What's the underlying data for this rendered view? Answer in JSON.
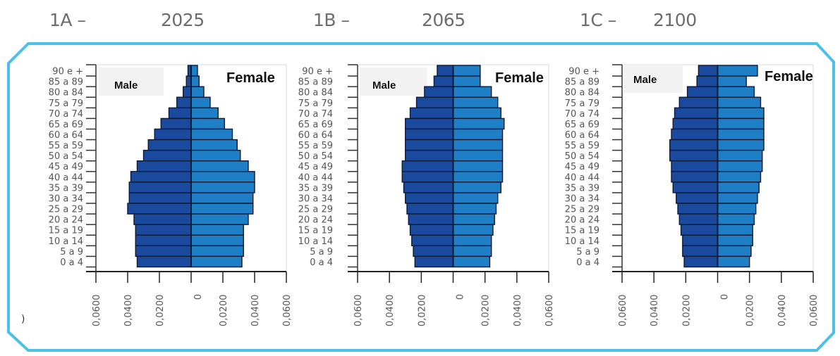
{
  "panels": [
    {
      "code": "1A –",
      "year": "2025"
    },
    {
      "code": "1B –",
      "year": "2065"
    },
    {
      "code": "1C –",
      "year": "2100"
    }
  ],
  "stray_mark": ")",
  "colors": {
    "male": "#1a4a9e",
    "female": "#1f7fc6",
    "bar_edge": "#0e1a33",
    "frame": "#4cc0e8",
    "legend_box": "#f3f3f3"
  },
  "chart_data": [
    {
      "type": "bar",
      "subtype": "population-pyramid",
      "title": "1A – 2025",
      "legend": [
        "Male",
        "Female"
      ],
      "legend_placement": "top",
      "age_groups": [
        "90 e +",
        "85 a 89",
        "80 a 84",
        "75 a 79",
        "70 a 74",
        "65 a 69",
        "60 a 64",
        "55 a 59",
        "50 a 54",
        "45 a 49",
        "40 a 44",
        "35 a 39",
        "30 a 34",
        "25 a 29",
        "20 a 24",
        "15 a 19",
        "10 a 14",
        "5 a 9",
        "0 a 4"
      ],
      "series": [
        {
          "name": "Male",
          "values": [
            0.002,
            0.003,
            0.005,
            0.009,
            0.014,
            0.019,
            0.023,
            0.027,
            0.03,
            0.034,
            0.038,
            0.039,
            0.039,
            0.04,
            0.036,
            0.035,
            0.035,
            0.035,
            0.034
          ]
        },
        {
          "name": "Female",
          "values": [
            0.004,
            0.005,
            0.008,
            0.012,
            0.017,
            0.021,
            0.026,
            0.029,
            0.031,
            0.036,
            0.04,
            0.04,
            0.039,
            0.039,
            0.036,
            0.033,
            0.033,
            0.033,
            0.032
          ]
        }
      ],
      "x_ticks": [
        "0,0600",
        "0,0400",
        "0,0200",
        "0",
        "0,0200",
        "0,0400",
        "0,0600"
      ],
      "xlim": [
        -0.06,
        0.06
      ],
      "xlabel": "",
      "ylabel": ""
    },
    {
      "type": "bar",
      "subtype": "population-pyramid",
      "title": "1B – 2065",
      "legend": [
        "Male",
        "Female"
      ],
      "legend_placement": "top",
      "age_groups": [
        "90 e +",
        "85 a 89",
        "80 a 84",
        "75 a 79",
        "70 a 74",
        "65 a 69",
        "60 a 64",
        "55 a 59",
        "50 a 54",
        "45 a 49",
        "40 a 44",
        "35 a 39",
        "30 a 34",
        "25 a 29",
        "20 a 24",
        "15 a 19",
        "10 a 14",
        "5 a 9",
        "0 a 4"
      ],
      "series": [
        {
          "name": "Male",
          "values": [
            0.01,
            0.012,
            0.018,
            0.023,
            0.027,
            0.03,
            0.03,
            0.03,
            0.03,
            0.032,
            0.032,
            0.031,
            0.03,
            0.029,
            0.028,
            0.027,
            0.026,
            0.025,
            0.024
          ]
        },
        {
          "name": "Female",
          "values": [
            0.017,
            0.017,
            0.024,
            0.028,
            0.03,
            0.032,
            0.031,
            0.031,
            0.031,
            0.031,
            0.031,
            0.03,
            0.028,
            0.027,
            0.026,
            0.025,
            0.024,
            0.024,
            0.023
          ]
        }
      ],
      "x_ticks": [
        "0,0600",
        "0,0400",
        "0,0200",
        "0",
        "0,0200",
        "0,0400",
        "0,0600"
      ],
      "xlim": [
        -0.06,
        0.06
      ],
      "xlabel": "",
      "ylabel": ""
    },
    {
      "type": "bar",
      "subtype": "population-pyramid",
      "title": "1C – 2100",
      "legend": [
        "Male",
        "Female"
      ],
      "legend_placement": "top",
      "age_groups": [
        "90 e +",
        "85 a 89",
        "80 a 84",
        "75 a 79",
        "70 a 74",
        "65 a 69",
        "60 a 64",
        "55 a 59",
        "50 a 54",
        "45 a 49",
        "40 a 44",
        "35 a 39",
        "30 a 34",
        "25 a 29",
        "20 a 24",
        "15 a 19",
        "10 a 14",
        "5 a 9",
        "0 a 4"
      ],
      "series": [
        {
          "name": "Male",
          "values": [
            0.012,
            0.013,
            0.019,
            0.024,
            0.027,
            0.028,
            0.029,
            0.03,
            0.03,
            0.029,
            0.029,
            0.028,
            0.026,
            0.025,
            0.024,
            0.023,
            0.022,
            0.022,
            0.021
          ]
        },
        {
          "name": "Female",
          "values": [
            0.025,
            0.018,
            0.023,
            0.027,
            0.029,
            0.029,
            0.029,
            0.029,
            0.028,
            0.028,
            0.027,
            0.026,
            0.025,
            0.024,
            0.023,
            0.022,
            0.022,
            0.021,
            0.02
          ]
        }
      ],
      "x_ticks": [
        "0,0600",
        "0,0400",
        "0,0200",
        "0",
        "0,0200",
        "0,0400",
        "0,0600"
      ],
      "xlim": [
        -0.06,
        0.06
      ],
      "xlabel": "",
      "ylabel": ""
    }
  ]
}
